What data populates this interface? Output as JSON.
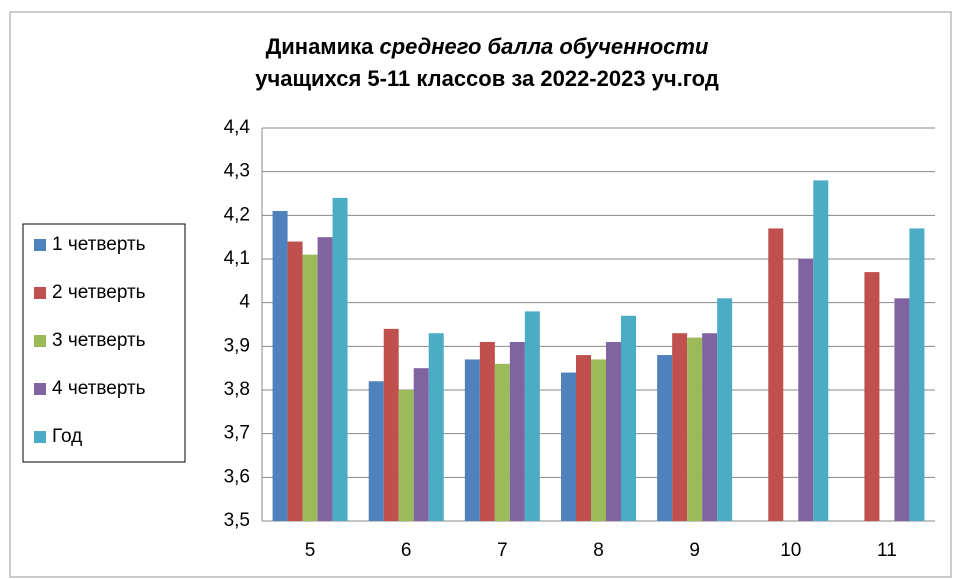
{
  "chart_data": {
    "type": "bar",
    "title": [
      "Динамика",
      "среднего балла обученности",
      "учащихся 5-11 классов за 2022-2023 уч.год"
    ],
    "categories": [
      "5",
      "6",
      "7",
      "8",
      "9",
      "10",
      "11"
    ],
    "series": [
      {
        "name": "1 четверть",
        "color": "#4f81bd",
        "values": [
          4.21,
          3.82,
          3.87,
          3.84,
          3.88,
          null,
          null
        ]
      },
      {
        "name": "2 четверть",
        "color": "#c0504d",
        "values": [
          4.14,
          3.94,
          3.91,
          3.88,
          3.93,
          4.17,
          4.07
        ]
      },
      {
        "name": "3 четверть",
        "color": "#9bbb59",
        "values": [
          4.11,
          3.8,
          3.86,
          3.87,
          3.92,
          null,
          null
        ]
      },
      {
        "name": "4 четверть",
        "color": "#8064a2",
        "values": [
          4.15,
          3.85,
          3.91,
          3.91,
          3.93,
          4.1,
          4.01
        ]
      },
      {
        "name": "Год",
        "color": "#4bacc6",
        "values": [
          4.24,
          3.93,
          3.98,
          3.97,
          4.01,
          4.28,
          4.17
        ]
      }
    ],
    "ylim": [
      3.5,
      4.4
    ],
    "yticks": [
      {
        "value": 3.5,
        "label": "3,5"
      },
      {
        "value": 3.6,
        "label": "3,6"
      },
      {
        "value": 3.7,
        "label": "3,7"
      },
      {
        "value": 3.8,
        "label": "3,8"
      },
      {
        "value": 3.9,
        "label": "3,9"
      },
      4,
      {
        "value": 4.1,
        "label": "4,1"
      },
      {
        "value": 4.2,
        "label": "4,2"
      },
      {
        "value": 4.3,
        "label": "4,3"
      },
      {
        "value": 4.4,
        "label": "4,4"
      }
    ],
    "grid": true,
    "legend": "left"
  }
}
